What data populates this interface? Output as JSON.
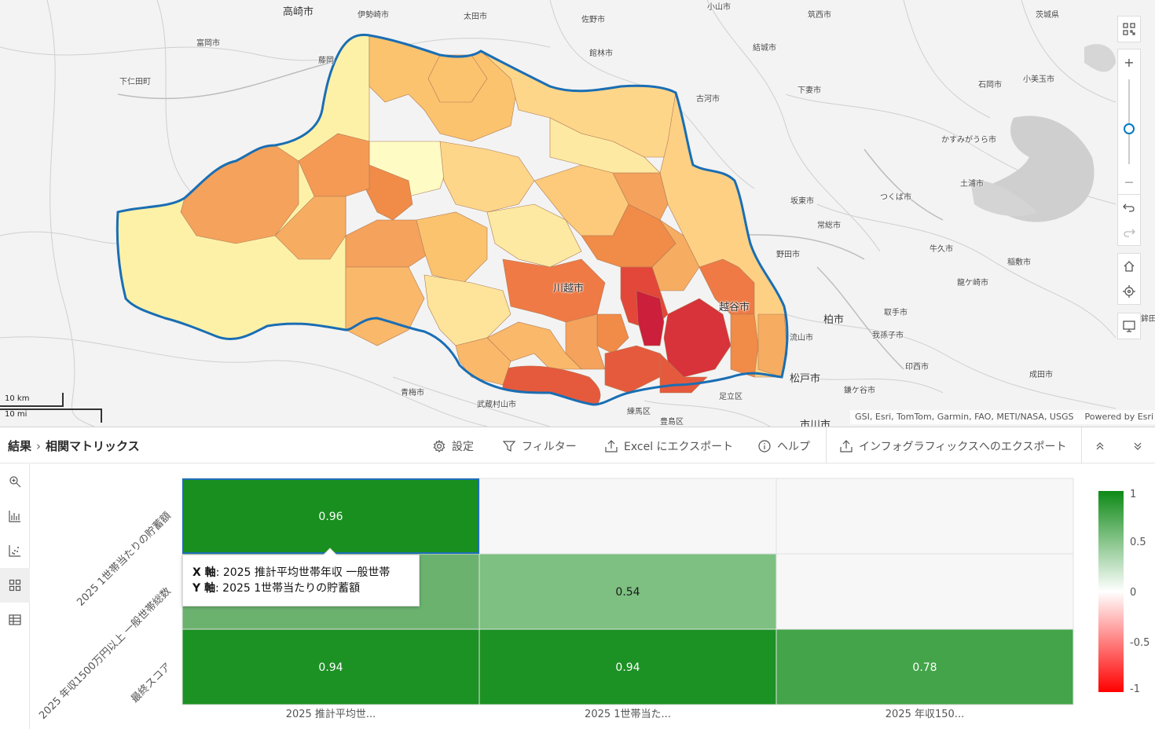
{
  "map": {
    "place_labels": [
      {
        "text": "高崎市",
        "big": true
      },
      {
        "text": "伊勢崎市"
      },
      {
        "text": "太田市"
      },
      {
        "text": "佐野市"
      },
      {
        "text": "小山市"
      },
      {
        "text": "筑西市"
      },
      {
        "text": "茨城県"
      },
      {
        "text": "富岡市"
      },
      {
        "text": "館林市"
      },
      {
        "text": "結城市"
      },
      {
        "text": "下仁田町"
      },
      {
        "text": "古河市"
      },
      {
        "text": "下妻市"
      },
      {
        "text": "石岡市"
      },
      {
        "text": "小美玉市"
      },
      {
        "text": "かすみがうら市"
      },
      {
        "text": "土浦市"
      },
      {
        "text": "つくば市"
      },
      {
        "text": "坂東市"
      },
      {
        "text": "常総市"
      },
      {
        "text": "野田市"
      },
      {
        "text": "牛久市"
      },
      {
        "text": "稲敷市"
      },
      {
        "text": "龍ケ崎市"
      },
      {
        "text": "柏市",
        "big": true
      },
      {
        "text": "取手市"
      },
      {
        "text": "我孫子市"
      },
      {
        "text": "流山市"
      },
      {
        "text": "印西市"
      },
      {
        "text": "松戸市",
        "big": true
      },
      {
        "text": "鎌ケ谷市"
      },
      {
        "text": "成田市"
      },
      {
        "text": "青梅市"
      },
      {
        "text": "武蔵村山市"
      },
      {
        "text": "練馬区"
      },
      {
        "text": "豊島区"
      },
      {
        "text": "足立区"
      },
      {
        "text": "市川市",
        "big": true
      },
      {
        "text": "鉾田市"
      },
      {
        "text": "藤岡"
      },
      {
        "text": "川越市",
        "big": true
      },
      {
        "text": "越谷市",
        "big": true
      }
    ],
    "scale": {
      "km": "10 km",
      "mi": "10 mi"
    },
    "attribution": {
      "sources": "GSI, Esri, TomTom, Garmin, FAO, METI/NASA, USGS",
      "powered": "Powered by Esri"
    },
    "controls": [
      "qr-icon",
      "zoom-in-icon",
      "zoom-out-icon",
      "undo-icon",
      "redo-icon",
      "home-icon",
      "locate-icon",
      "screen-icon"
    ],
    "zoom_in": "+",
    "zoom_out": "—"
  },
  "panel": {
    "breadcrumb": {
      "root": "結果",
      "separator": "›",
      "current": "相関マトリックス"
    },
    "toolbar": {
      "settings": "設定",
      "filter": "フィルター",
      "export_excel": "Excel にエクスポート",
      "help": "ヘルプ",
      "export_infographic": "インフォグラフィックスへのエクスポート"
    },
    "sidebar": [
      "zoom-search-icon",
      "bar-chart-icon",
      "scatter-icon",
      "matrix-icon",
      "table-icon"
    ]
  },
  "tooltip": {
    "x_key": "X 軸",
    "x_value": ": 2025 推計平均世帯年収 一般世帯",
    "y_key": "Y 軸",
    "y_value": ": 2025 1世帯当たりの貯蓄額"
  },
  "chart_data": {
    "type": "heatmap",
    "x_labels": [
      "2025 推計平均世...",
      "2025 1世帯当た...",
      "2025 年収150..."
    ],
    "y_labels": [
      "2025 1世帯当たりの貯蓄額",
      "2025 年収1500万円以上 一般世帯総数",
      "最終スコア"
    ],
    "values": [
      [
        0.96,
        null,
        null
      ],
      [
        null,
        0.54,
        null
      ],
      [
        0.94,
        0.94,
        0.78
      ]
    ],
    "hidden_under_tooltip": [
      [
        1,
        0
      ]
    ],
    "color_scale": {
      "min": -1,
      "max": 1,
      "ticks": [
        "1",
        "0.5",
        "0",
        "-0.5",
        "-1"
      ],
      "colors": {
        "positive": "#0e8a16",
        "zero": "#ffffff",
        "negative": "#ff0000"
      }
    },
    "selected_cell": [
      0,
      0
    ],
    "selected_border_color": "#1e6fb8"
  }
}
